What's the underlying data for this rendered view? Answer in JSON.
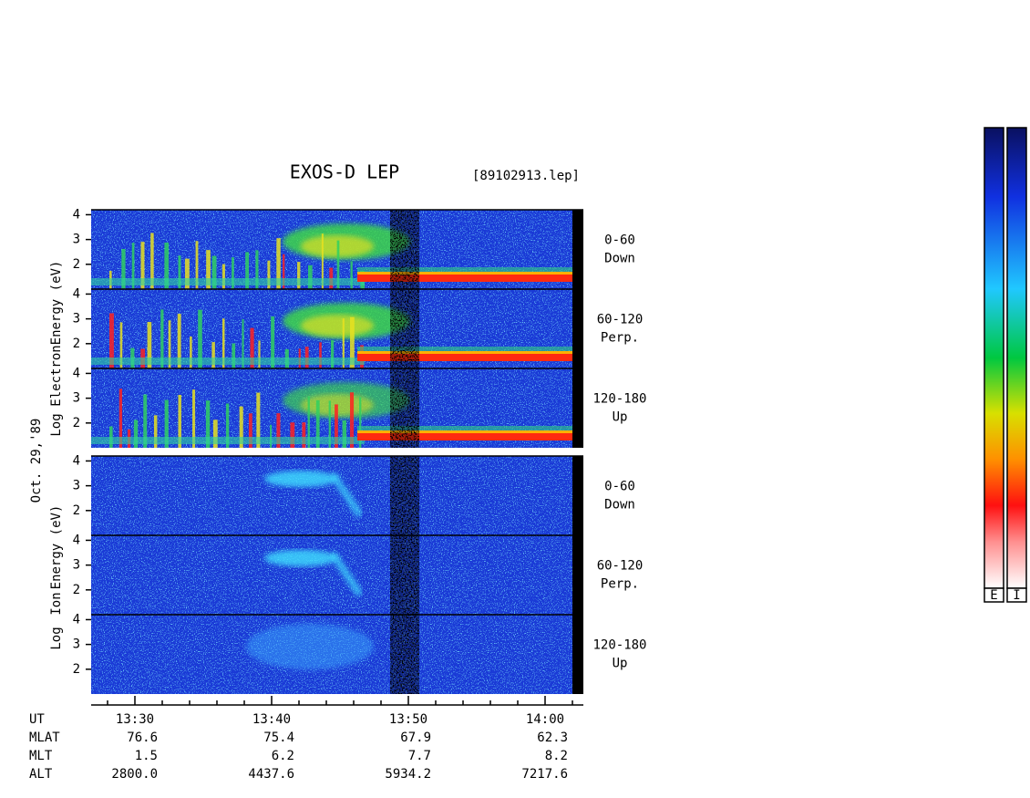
{
  "header": {
    "title": "EXOS-D LEP",
    "file": "[89102913.lep]"
  },
  "date": "Oct. 29,'89",
  "electron": {
    "axis_label": [
      "Log",
      "Electron",
      "Energy (eV)"
    ],
    "panels": [
      {
        "label": "0-60",
        "sublabel": "Down"
      },
      {
        "label": "60-120",
        "sublabel": "Perp."
      },
      {
        "label": "120-180",
        "sublabel": "Up"
      }
    ]
  },
  "ion": {
    "axis_label": [
      "Log",
      "Ion",
      "Energy (eV)"
    ],
    "panels": [
      {
        "label": "0-60",
        "sublabel": "Down"
      },
      {
        "label": "60-120",
        "sublabel": "Perp."
      },
      {
        "label": "120-180",
        "sublabel": "Up"
      }
    ]
  },
  "energy_axis": {
    "ylim": [
      1,
      4.2
    ],
    "yticks": [
      2,
      3,
      4
    ]
  },
  "time_axis": {
    "label": "UT",
    "xlim": [
      806.8,
      842.8
    ],
    "xticks": [
      {
        "value": 810,
        "label": "13:30"
      },
      {
        "value": 820,
        "label": "13:40"
      },
      {
        "value": 830,
        "label": "13:50"
      },
      {
        "value": 840,
        "label": "14:00"
      }
    ],
    "minor_ticks": [
      808,
      812,
      814,
      816,
      818,
      822,
      824,
      826,
      828,
      832,
      834,
      836,
      838,
      842
    ]
  },
  "orbit_table": {
    "rows": [
      {
        "name": "MLAT",
        "values": [
          "76.6",
          "75.4",
          "67.9",
          "62.3"
        ]
      },
      {
        "name": "MLT",
        "values": [
          "1.5",
          "6.2",
          "7.7",
          "8.2"
        ]
      },
      {
        "name": "ALT",
        "values": [
          "2800.0",
          "4437.6",
          "5934.2",
          "7217.6"
        ]
      }
    ]
  },
  "colorbars": [
    "E",
    "I"
  ]
}
